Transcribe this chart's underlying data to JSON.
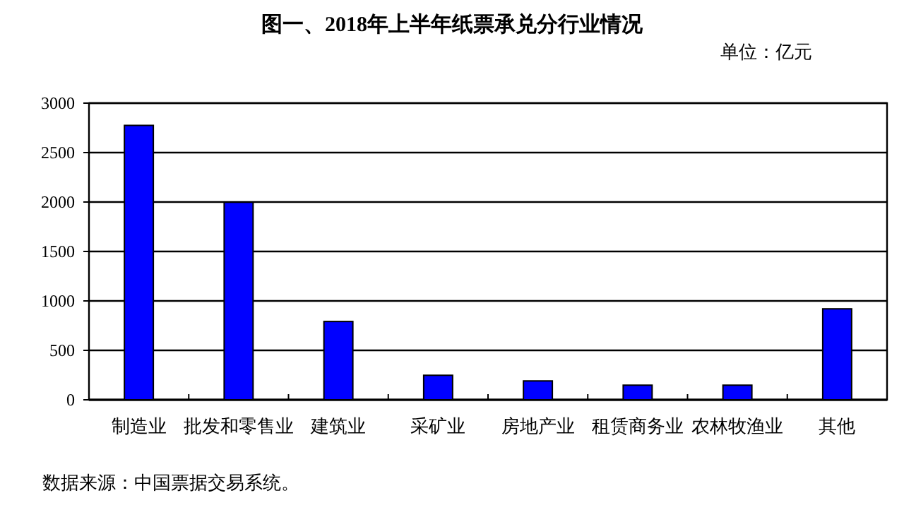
{
  "chart_data": {
    "type": "bar",
    "title": "图一、2018年上半年纸票承兑分行业情况",
    "annotations": [
      "单位：亿元",
      "数据来源：中国票据交易系统。"
    ],
    "categories": [
      "制造业",
      "批发和零售业",
      "建筑业",
      "采矿业",
      "房地产业",
      "租赁商务业",
      "农林牧渔业",
      "其他"
    ],
    "values": [
      2775,
      1998,
      792,
      248,
      191,
      148,
      148,
      920
    ],
    "color": "#0000ff",
    "ylim": [
      0,
      3000
    ],
    "yticks": [
      0,
      500,
      1000,
      1500,
      2000,
      2500,
      3000
    ],
    "grid": "y"
  }
}
